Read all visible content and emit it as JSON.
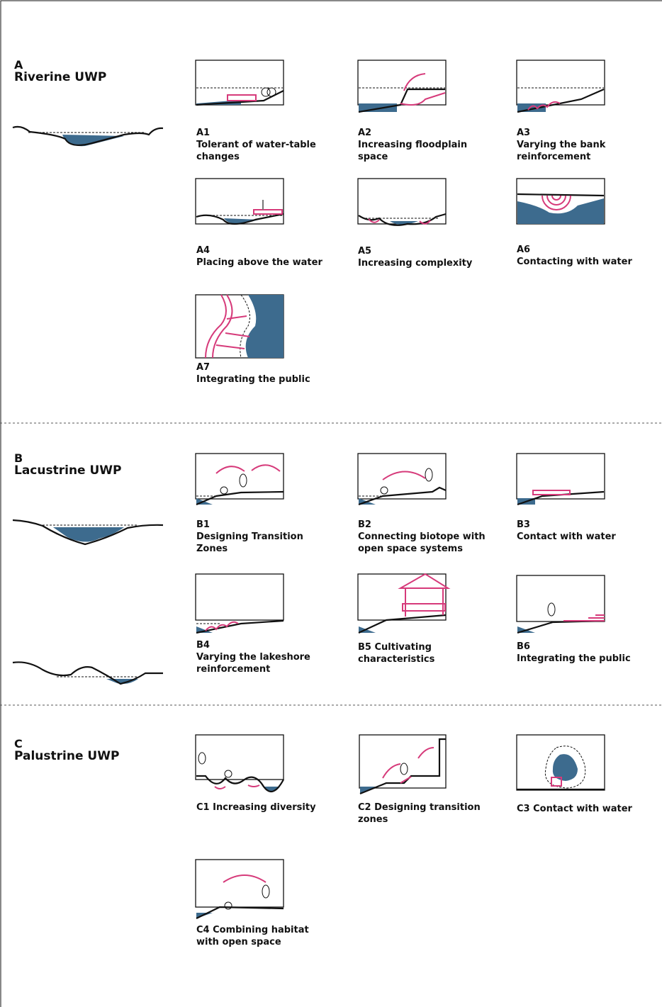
{
  "sections": [
    {
      "letter": "A",
      "title": "Riverine UWP",
      "items": [
        {
          "code": "A1",
          "label": "Tolerant of water-table changes"
        },
        {
          "code": "A2",
          "label": "Increasing floodplain space"
        },
        {
          "code": "A3",
          "label": "Varying the bank reinforcement"
        },
        {
          "code": "A4",
          "label": "Placing above the water"
        },
        {
          "code": "A5",
          "label": "Increasing complexity"
        },
        {
          "code": "A6",
          "label": "Contacting with water"
        },
        {
          "code": "A7",
          "label": "Integrating the public"
        }
      ]
    },
    {
      "letter": "B",
      "title": "Lacustrine UWP",
      "items": [
        {
          "code": "B1",
          "label": "Designing Transition Zones"
        },
        {
          "code": "B2",
          "label": "Connecting biotope with open space systems"
        },
        {
          "code": "B3",
          "label": "Contact with water"
        },
        {
          "code": "B4",
          "label": "Varying the lakeshore reinforcement"
        },
        {
          "label": "B5 Cultivating characteristics"
        },
        {
          "code": "B6",
          "label": "Integrating the public"
        }
      ]
    },
    {
      "letter": "C",
      "title": "Palustrine UWP",
      "items": [
        {
          "label": "C1 Increasing diversity"
        },
        {
          "label": "C2 Designing transition zones"
        },
        {
          "label": "C3 Contact with water"
        },
        {
          "label": "C4 Combining habitat with open space"
        }
      ]
    }
  ]
}
